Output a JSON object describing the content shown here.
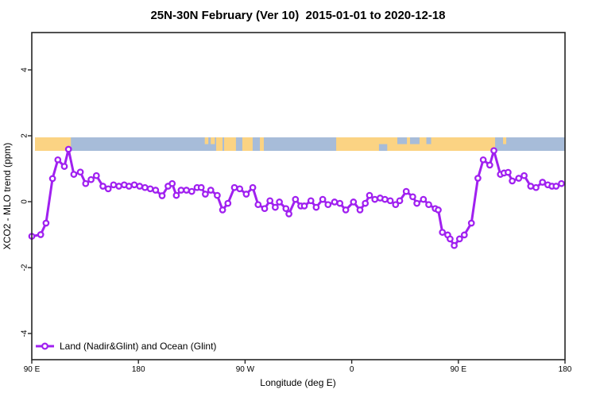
{
  "figure": {
    "title": "25N-30N February (Ver 10)  2015-01-01 to 2020-12-18",
    "xlabel": "Longitude (deg E)",
    "ylabel": "XCO2 - MLO trend (ppm)"
  },
  "legend": {
    "label": "Land (Nadir&Glint) and Ocean (Glint)"
  },
  "colors": {
    "series": "#A020F0",
    "marker_fill": "#FFFFFF",
    "water": "#A7BCD9",
    "land": "#FBD383",
    "axis": "#262626"
  },
  "chart_data": {
    "type": "line",
    "title": "25N-30N February (Ver 10)  2015-01-01 to 2020-12-18",
    "xlabel": "Longitude (deg E)",
    "ylabel": "XCO2 - MLO trend (ppm)",
    "x_axis": {
      "tick_labels": [
        "90 E",
        "180",
        "90 W",
        "0",
        "90 E",
        "180"
      ],
      "tick_offsets_deg": [
        0,
        90,
        180,
        270,
        360,
        450
      ],
      "span_deg": 450,
      "note": "longitude axis starts at 90E and wraps eastward 450 degrees to 180"
    },
    "y_axis": {
      "ticks": [
        -4,
        -2,
        0,
        2,
        4
      ],
      "range": [
        -4.9,
        5.1
      ],
      "grid": false
    },
    "legend": {
      "label": "Land (Nadir&Glint) and Ocean (Glint)",
      "position": "bottom-left"
    },
    "series": [
      {
        "name": "Land (Nadir&Glint) and Ocean (Glint)",
        "marker": "open-circle",
        "points": [
          [
            0,
            -1.05
          ],
          [
            7.5,
            -1.0
          ],
          [
            12,
            -0.65
          ],
          [
            17.5,
            0.7
          ],
          [
            22,
            1.27
          ],
          [
            27.5,
            1.07
          ],
          [
            31,
            1.59
          ],
          [
            35.5,
            0.83
          ],
          [
            41,
            0.9
          ],
          [
            45.5,
            0.55
          ],
          [
            50,
            0.67
          ],
          [
            54.5,
            0.79
          ],
          [
            60,
            0.47
          ],
          [
            64.5,
            0.39
          ],
          [
            69,
            0.51
          ],
          [
            73.5,
            0.47
          ],
          [
            78,
            0.51
          ],
          [
            82,
            0.47
          ],
          [
            86.5,
            0.51
          ],
          [
            91,
            0.47
          ],
          [
            95.5,
            0.43
          ],
          [
            100,
            0.39
          ],
          [
            104.5,
            0.35
          ],
          [
            110,
            0.18
          ],
          [
            115,
            0.47
          ],
          [
            118.5,
            0.55
          ],
          [
            122,
            0.19
          ],
          [
            126,
            0.35
          ],
          [
            130.5,
            0.35
          ],
          [
            135,
            0.31
          ],
          [
            139.5,
            0.43
          ],
          [
            143,
            0.43
          ],
          [
            146.5,
            0.23
          ],
          [
            151,
            0.35
          ],
          [
            156.5,
            0.19
          ],
          [
            161,
            -0.25
          ],
          [
            165.5,
            -0.05
          ],
          [
            171,
            0.43
          ],
          [
            175.5,
            0.39
          ],
          [
            181,
            0.23
          ],
          [
            186.5,
            0.43
          ],
          [
            191,
            -0.09
          ],
          [
            196.5,
            -0.21
          ],
          [
            201,
            0.03
          ],
          [
            205.5,
            -0.17
          ],
          [
            209,
            -0.01
          ],
          [
            214.5,
            -0.21
          ],
          [
            217,
            -0.37
          ],
          [
            222.5,
            0.07
          ],
          [
            227,
            -0.13
          ],
          [
            230,
            -0.13
          ],
          [
            235.5,
            0.03
          ],
          [
            240,
            -0.17
          ],
          [
            245.5,
            0.07
          ],
          [
            250,
            -0.09
          ],
          [
            255.5,
            -0.01
          ],
          [
            260,
            -0.05
          ],
          [
            265,
            -0.25
          ],
          [
            271.5,
            -0.01
          ],
          [
            277,
            -0.25
          ],
          [
            281.5,
            -0.05
          ],
          [
            285,
            0.19
          ],
          [
            289.5,
            0.07
          ],
          [
            294,
            0.11
          ],
          [
            298,
            0.07
          ],
          [
            302.5,
            0.03
          ],
          [
            307,
            -0.09
          ],
          [
            310.5,
            0.03
          ],
          [
            316,
            0.31
          ],
          [
            321.5,
            0.15
          ],
          [
            325,
            -0.05
          ],
          [
            330.5,
            0.07
          ],
          [
            335,
            -0.09
          ],
          [
            340.5,
            -0.21
          ],
          [
            343,
            -0.25
          ],
          [
            346.5,
            -0.93
          ],
          [
            351,
            -1.01
          ],
          [
            353,
            -1.13
          ],
          [
            356.5,
            -1.33
          ],
          [
            361,
            -1.13
          ],
          [
            365,
            -1.01
          ],
          [
            371,
            -0.65
          ],
          [
            376.5,
            0.71
          ],
          [
            381,
            1.27
          ],
          [
            386.5,
            1.11
          ],
          [
            390,
            1.55
          ],
          [
            395.5,
            0.83
          ],
          [
            398.5,
            0.87
          ],
          [
            402,
            0.89
          ],
          [
            405.5,
            0.63
          ],
          [
            411,
            0.71
          ],
          [
            415.5,
            0.79
          ],
          [
            421,
            0.47
          ],
          [
            425.5,
            0.43
          ],
          [
            431,
            0.59
          ],
          [
            435.5,
            0.51
          ],
          [
            439,
            0.47
          ],
          [
            442.5,
            0.47
          ],
          [
            447,
            0.55
          ]
        ]
      }
    ],
    "map_strip": {
      "description": "coastline band for 25N-30N drawn across the plot near +1.7 ppm",
      "value_range_ppm": [
        1.5,
        1.95
      ],
      "water_span_deg": [
        2.7,
        450
      ],
      "land_segments_deg": [
        [
          2.7,
          33,
          "full"
        ],
        [
          146,
          149,
          "top"
        ],
        [
          151,
          154.5,
          "top"
        ],
        [
          155.6,
          161,
          "full"
        ],
        [
          162.3,
          172.3,
          "full"
        ],
        [
          177.7,
          186.4,
          "full"
        ],
        [
          192.5,
          195.8,
          "full"
        ],
        [
          256.9,
          391,
          "full"
        ],
        [
          397.7,
          400.4,
          "top"
        ]
      ],
      "water_patches_deg": [
        [
          308.5,
          316.6,
          "top"
        ],
        [
          319.2,
          327.2,
          "top"
        ],
        [
          333,
          337,
          "top"
        ],
        [
          293,
          300,
          "bottom"
        ]
      ]
    }
  }
}
